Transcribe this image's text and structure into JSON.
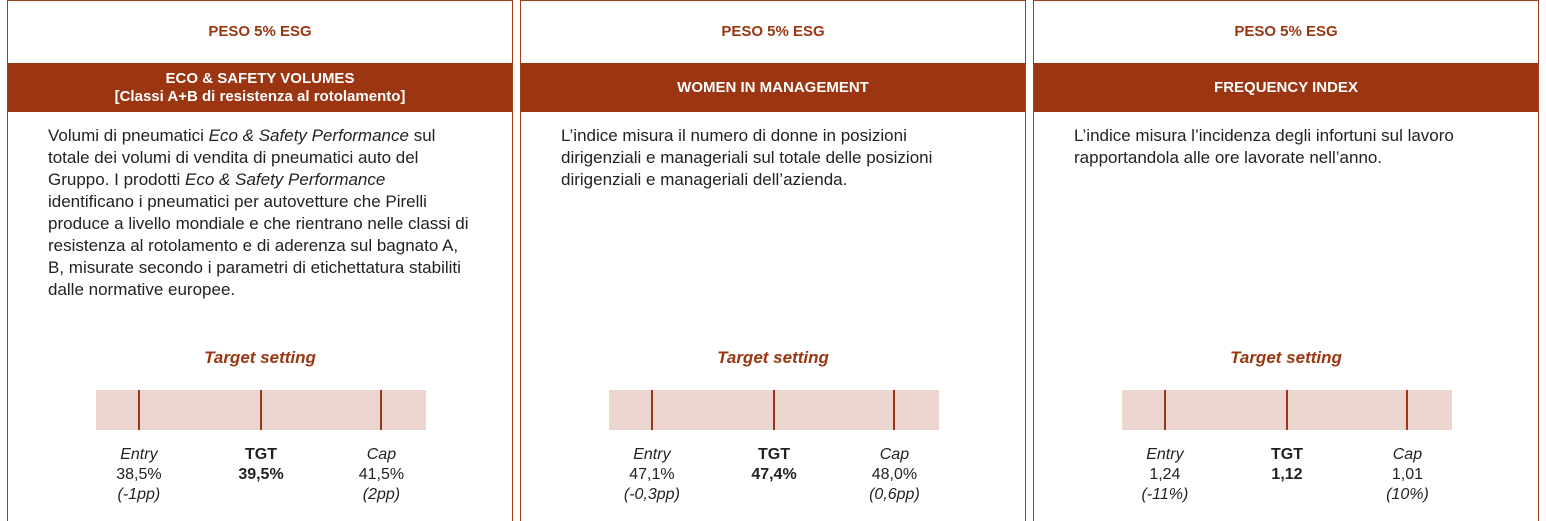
{
  "panels": [
    {
      "weight": "PESO 5% ESG",
      "title": [
        "ECO & SAFETY VOLUMES",
        "[Classi A+B di resistenza al rotolamento]"
      ],
      "description": [
        {
          "text": "Volumi di pneumatici ",
          "italic": false
        },
        {
          "text": "Eco & Safety Performance",
          "italic": true
        },
        {
          "text": " sul totale dei volumi di vendita di pneumatici auto del Gruppo. I prodotti ",
          "italic": false
        },
        {
          "text": "Eco & Safety Performance",
          "italic": true
        },
        {
          "text": " identificano i pneumatici per autovetture che Pirelli produce a livello mondiale e che rientrano nelle classi di resistenza al rotolamento e di aderenza sul bagnato A, B, misurate secondo i parametri di etichettatura stabiliti dalle normative europee.",
          "italic": false
        }
      ],
      "target_label": "Target setting",
      "levels": [
        {
          "name": "Entry",
          "value": "38,5%",
          "delta": "(-1pp)"
        },
        {
          "name": "TGT",
          "value": "39,5%"
        },
        {
          "name": "Cap",
          "value": "41,5%",
          "delta": "(2pp)"
        }
      ]
    },
    {
      "weight": "PESO 5% ESG",
      "title": [
        "WOMEN IN MANAGEMENT"
      ],
      "description": [
        {
          "text": "L’indice misura il numero di donne in posizioni dirigenziali e manageriali sul totale delle posizioni dirigenziali e manageriali dell’azienda.",
          "italic": false
        }
      ],
      "target_label": "Target setting",
      "levels": [
        {
          "name": "Entry",
          "value": "47,1%",
          "delta": "(-0,3pp)"
        },
        {
          "name": "TGT",
          "value": "47,4%"
        },
        {
          "name": "Cap",
          "value": "48,0%",
          "delta": "(0,6pp)"
        }
      ]
    },
    {
      "weight": "PESO 5% ESG",
      "title": [
        "FREQUENCY INDEX"
      ],
      "description": [
        {
          "text": "L’indice misura l’incidenza degli infortuni sul lavoro rapportandola alle ore lavorate nell’anno.",
          "italic": false
        }
      ],
      "target_label": "Target setting",
      "levels": [
        {
          "name": "Entry",
          "value": "1,24",
          "delta": "(-11%)"
        },
        {
          "name": "TGT",
          "value": "1,12"
        },
        {
          "name": "Cap",
          "value": "1,01",
          "delta": "(10%)"
        }
      ]
    }
  ]
}
